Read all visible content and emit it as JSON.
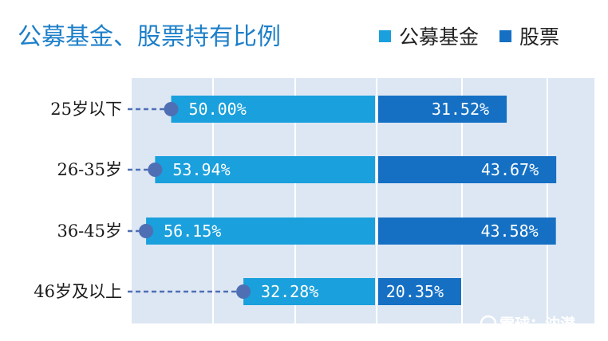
{
  "chart_data": {
    "type": "bar",
    "title": "公募基金、股票持有比例",
    "categories": [
      "25岁以下",
      "26-35岁",
      "36-45岁",
      "46岁及以上"
    ],
    "series": [
      {
        "name": "公募基金",
        "values": [
          50.0,
          53.94,
          56.15,
          32.28
        ],
        "labels": [
          "50.00%",
          "53.94%",
          "56.15%",
          "32.28%"
        ],
        "color": "#1aa0dc"
      },
      {
        "name": "股票",
        "values": [
          31.52,
          43.67,
          43.58,
          20.35
        ],
        "labels": [
          "31.52%",
          "43.67%",
          "43.58%",
          "20.35%"
        ],
        "color": "#1570c4"
      }
    ],
    "orientation": "horizontal-butterfly",
    "unit": "%",
    "xlim": [
      0,
      100
    ],
    "grid": true,
    "legend": "top-right",
    "panel_color": "#dde7f3",
    "connector_color": "#4f6fb5"
  },
  "watermark": {
    "text": "雪球：沈潜"
  }
}
